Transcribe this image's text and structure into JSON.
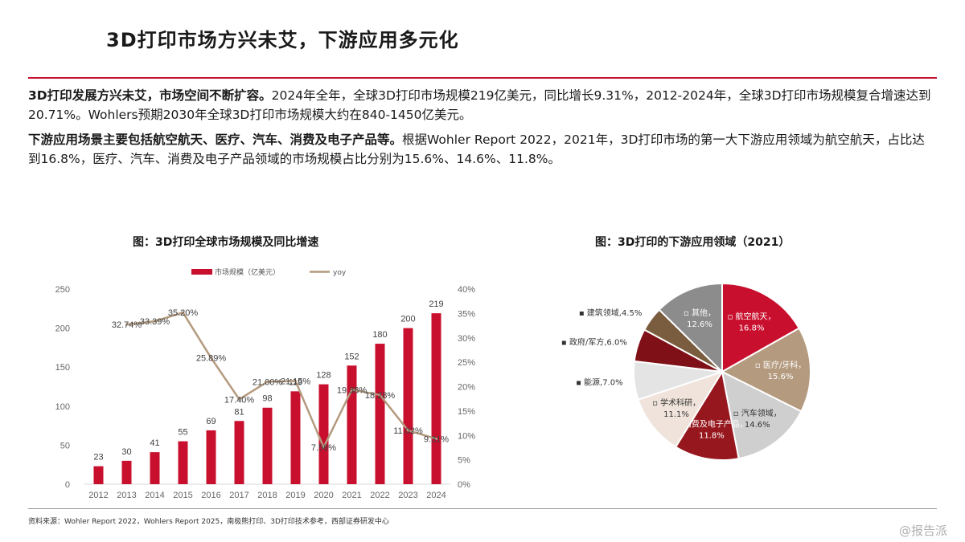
{
  "page": {
    "title": "3D打印市场方兴未艾，下游应用多元化",
    "para1_bold": "3D打印发展方兴未艾，市场空间不断扩容。",
    "para1_text": "2024年全年，全球3D打印市场规模219亿美元，同比增长9.31%，2012-2024年，全球3D打印市场规模复合增速达到20.71%。Wohlers预期2030年全球3D打印市场规模大约在840-1450亿美元。",
    "para2_bold": "下游应用场景主要包括航空航天、医疗、汽车、消费及电子产品等。",
    "para2_text": "根据Wohler Report 2022，2021年，3D打印市场的第一大下游应用领域为航空航天，占比达到16.8%，医疗、汽车、消费及电子产品领域的市场规模占比分别为15.6%、14.6%、11.8%。",
    "source": "资料来源：Wohler Report 2022，Wohlers Report 2025，南极熊打印、3D打印技术参考，西部证券研发中心",
    "watermark": "@报告派"
  },
  "colors": {
    "accent_red": "#c8102e",
    "line_tan": "#b49a7e"
  },
  "chart_data": [
    {
      "type": "bar",
      "title": "图：3D打印全球市场规模及同比增速",
      "categories": [
        "2012",
        "2013",
        "2014",
        "2015",
        "2016",
        "2017",
        "2018",
        "2019",
        "2020",
        "2021",
        "2022",
        "2023",
        "2024"
      ],
      "series": [
        {
          "name": "市场规模（亿美元）",
          "type": "bar",
          "axis": "left",
          "color": "#c8102e",
          "values": [
            23,
            30,
            41,
            55,
            69,
            81,
            98,
            119,
            128,
            152,
            180,
            200,
            219
          ],
          "labels": [
            "23",
            "30",
            "41",
            "55",
            "69",
            "81",
            "98",
            "119",
            "128",
            "152",
            "180",
            "200",
            "219"
          ]
        },
        {
          "name": "yoy",
          "type": "line",
          "axis": "right",
          "color": "#b49a7e",
          "values": [
            null,
            32.74,
            33.39,
            35.2,
            25.89,
            17.4,
            21.0,
            21.15,
            7.56,
            19.38,
            18.28,
            11.02,
            9.31
          ],
          "labels": [
            "",
            "32.74%",
            "33.39%",
            "35.20%",
            "25.89%",
            "17.40%",
            "21.00%",
            "21.15%",
            "7.56%",
            "19.38%",
            "18.28%",
            "11.02%",
            "9.31%"
          ]
        }
      ],
      "left_axis": {
        "ylim": [
          0,
          250
        ],
        "ticks": [
          "0",
          "50",
          "100",
          "150",
          "200",
          "250"
        ]
      },
      "right_axis": {
        "ylim": [
          0,
          40
        ],
        "ticks": [
          "0%",
          "5%",
          "10%",
          "15%",
          "20%",
          "25%",
          "30%",
          "35%",
          "40%"
        ]
      },
      "legend": "top",
      "grid": false
    },
    {
      "type": "pie",
      "title": "图：3D打印的下游应用领域（2021）",
      "slices": [
        {
          "label": "航空航天",
          "value": 16.8,
          "display": "16.8%",
          "color": "#c8102e"
        },
        {
          "label": "医疗/牙科",
          "value": 15.6,
          "display": "15.6%",
          "color": "#b49a7e"
        },
        {
          "label": "汽车领域",
          "value": 14.6,
          "display": "14.6%",
          "color": "#cfcfcf"
        },
        {
          "label": "消费及电子产品",
          "value": 11.8,
          "display": "11.8%",
          "color": "#96181e"
        },
        {
          "label": "学术科研",
          "value": 11.1,
          "display": "11.1%",
          "color": "#efe3db"
        },
        {
          "label": "能源",
          "value": 7.0,
          "display": "7.0%",
          "color": "#e4e4e4"
        },
        {
          "label": "政府/军方",
          "value": 6.0,
          "display": "6.0%",
          "color": "#7f1018"
        },
        {
          "label": "建筑领域",
          "value": 4.5,
          "display": "4.5%",
          "color": "#7a5c3e"
        },
        {
          "label": "其他",
          "value": 12.6,
          "display": "12.6%",
          "color": "#8c8c8c"
        }
      ]
    }
  ]
}
